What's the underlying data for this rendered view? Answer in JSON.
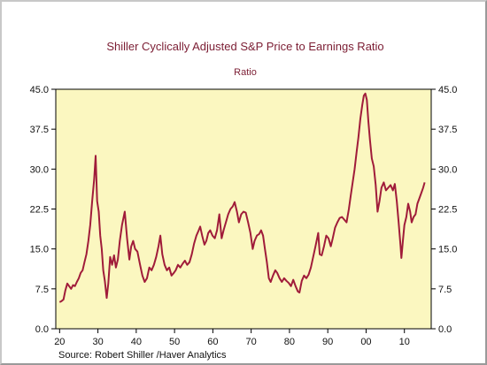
{
  "chart_data": {
    "type": "line",
    "title": "Shiller Cyclically Adjusted S&P Price to Earnings Ratio",
    "subtitle": "Ratio",
    "source": "Source:  Robert Shiller /Haver Analytics",
    "xlabel": "",
    "ylabel": "",
    "x_ticks": [
      "20",
      "30",
      "40",
      "50",
      "60",
      "70",
      "80",
      "90",
      "00",
      "10"
    ],
    "x_tick_years": [
      1920,
      1930,
      1940,
      1950,
      1960,
      1970,
      1980,
      1990,
      2000,
      2010
    ],
    "y_ticks": [
      "0.0",
      "7.5",
      "15.0",
      "22.5",
      "30.0",
      "37.5",
      "45.0"
    ],
    "ylim": [
      0,
      45
    ],
    "xlim": [
      1919,
      2017
    ],
    "line_color": "#a01c3a",
    "background_color": "#fbf7c0",
    "series": [
      {
        "values": [
          [
            1920.0,
            5.0
          ],
          [
            1920.5,
            5.2
          ],
          [
            1921.0,
            5.5
          ],
          [
            1921.5,
            7.2
          ],
          [
            1922.0,
            8.5
          ],
          [
            1922.5,
            8.0
          ],
          [
            1923.0,
            7.5
          ],
          [
            1923.5,
            8.2
          ],
          [
            1924.0,
            8.0
          ],
          [
            1924.5,
            8.8
          ],
          [
            1925.0,
            9.5
          ],
          [
            1925.5,
            10.5
          ],
          [
            1926.0,
            11.0
          ],
          [
            1926.5,
            12.5
          ],
          [
            1927.0,
            14.0
          ],
          [
            1927.5,
            16.5
          ],
          [
            1928.0,
            19.5
          ],
          [
            1928.5,
            24.0
          ],
          [
            1929.0,
            28.0
          ],
          [
            1929.4,
            32.5
          ],
          [
            1929.8,
            24.0
          ],
          [
            1930.2,
            22.0
          ],
          [
            1930.6,
            17.5
          ],
          [
            1931.0,
            15.0
          ],
          [
            1931.4,
            11.0
          ],
          [
            1931.8,
            9.0
          ],
          [
            1932.3,
            5.8
          ],
          [
            1932.7,
            8.5
          ],
          [
            1933.2,
            13.5
          ],
          [
            1933.7,
            12.0
          ],
          [
            1934.2,
            13.8
          ],
          [
            1934.7,
            11.5
          ],
          [
            1935.2,
            13.0
          ],
          [
            1935.7,
            16.5
          ],
          [
            1936.3,
            19.5
          ],
          [
            1937.0,
            22.0
          ],
          [
            1937.6,
            17.0
          ],
          [
            1938.2,
            13.0
          ],
          [
            1938.7,
            15.5
          ],
          [
            1939.2,
            16.5
          ],
          [
            1939.7,
            15.0
          ],
          [
            1940.3,
            14.5
          ],
          [
            1941.0,
            12.0
          ],
          [
            1941.6,
            10.0
          ],
          [
            1942.2,
            8.8
          ],
          [
            1942.8,
            9.5
          ],
          [
            1943.4,
            11.5
          ],
          [
            1944.0,
            11.0
          ],
          [
            1944.6,
            12.0
          ],
          [
            1945.2,
            13.5
          ],
          [
            1945.8,
            15.5
          ],
          [
            1946.3,
            17.5
          ],
          [
            1946.8,
            14.0
          ],
          [
            1947.4,
            12.0
          ],
          [
            1948.0,
            11.0
          ],
          [
            1948.6,
            11.5
          ],
          [
            1949.2,
            10.0
          ],
          [
            1949.8,
            10.5
          ],
          [
            1950.3,
            11.0
          ],
          [
            1950.9,
            12.0
          ],
          [
            1951.5,
            11.5
          ],
          [
            1952.1,
            12.2
          ],
          [
            1952.7,
            12.8
          ],
          [
            1953.3,
            12.0
          ],
          [
            1953.9,
            12.5
          ],
          [
            1954.5,
            14.0
          ],
          [
            1955.1,
            16.0
          ],
          [
            1955.7,
            17.5
          ],
          [
            1956.3,
            18.5
          ],
          [
            1956.7,
            19.2
          ],
          [
            1957.2,
            17.5
          ],
          [
            1957.8,
            15.8
          ],
          [
            1958.3,
            16.5
          ],
          [
            1958.8,
            18.0
          ],
          [
            1959.3,
            18.5
          ],
          [
            1959.9,
            17.5
          ],
          [
            1960.5,
            17.0
          ],
          [
            1961.1,
            18.5
          ],
          [
            1961.7,
            21.5
          ],
          [
            1962.3,
            17.0
          ],
          [
            1962.8,
            18.5
          ],
          [
            1963.4,
            20.0
          ],
          [
            1964.0,
            21.5
          ],
          [
            1964.6,
            22.5
          ],
          [
            1965.2,
            23.0
          ],
          [
            1965.7,
            23.8
          ],
          [
            1966.3,
            22.0
          ],
          [
            1966.8,
            20.0
          ],
          [
            1967.4,
            21.5
          ],
          [
            1968.0,
            22.0
          ],
          [
            1968.6,
            21.8
          ],
          [
            1969.2,
            20.0
          ],
          [
            1969.8,
            18.0
          ],
          [
            1970.4,
            15.0
          ],
          [
            1970.9,
            16.5
          ],
          [
            1971.5,
            17.5
          ],
          [
            1972.1,
            17.8
          ],
          [
            1972.6,
            18.5
          ],
          [
            1973.1,
            17.5
          ],
          [
            1973.6,
            15.0
          ],
          [
            1974.1,
            12.5
          ],
          [
            1974.6,
            9.5
          ],
          [
            1975.1,
            8.8
          ],
          [
            1975.7,
            10.0
          ],
          [
            1976.3,
            11.0
          ],
          [
            1976.8,
            10.5
          ],
          [
            1977.4,
            9.5
          ],
          [
            1978.0,
            8.8
          ],
          [
            1978.6,
            9.5
          ],
          [
            1979.2,
            9.0
          ],
          [
            1979.8,
            8.6
          ],
          [
            1980.4,
            8.0
          ],
          [
            1981.0,
            9.2
          ],
          [
            1981.6,
            8.0
          ],
          [
            1982.2,
            7.0
          ],
          [
            1982.6,
            6.8
          ],
          [
            1983.2,
            9.0
          ],
          [
            1983.8,
            10.0
          ],
          [
            1984.4,
            9.5
          ],
          [
            1985.0,
            10.2
          ],
          [
            1985.6,
            11.5
          ],
          [
            1986.2,
            13.5
          ],
          [
            1986.8,
            15.5
          ],
          [
            1987.5,
            18.0
          ],
          [
            1987.9,
            14.0
          ],
          [
            1988.4,
            13.8
          ],
          [
            1989.0,
            15.5
          ],
          [
            1989.6,
            17.5
          ],
          [
            1990.2,
            17.0
          ],
          [
            1990.8,
            15.5
          ],
          [
            1991.3,
            17.0
          ],
          [
            1991.9,
            19.0
          ],
          [
            1992.5,
            20.0
          ],
          [
            1993.1,
            20.8
          ],
          [
            1993.7,
            21.0
          ],
          [
            1994.3,
            20.5
          ],
          [
            1994.9,
            20.0
          ],
          [
            1995.5,
            22.5
          ],
          [
            1996.0,
            25.0
          ],
          [
            1996.5,
            27.5
          ],
          [
            1997.0,
            30.0
          ],
          [
            1997.5,
            33.0
          ],
          [
            1998.0,
            36.0
          ],
          [
            1998.5,
            39.5
          ],
          [
            1999.0,
            42.0
          ],
          [
            1999.4,
            43.8
          ],
          [
            1999.8,
            44.2
          ],
          [
            2000.2,
            43.0
          ],
          [
            2000.6,
            39.0
          ],
          [
            2001.0,
            35.5
          ],
          [
            2001.5,
            32.0
          ],
          [
            2002.0,
            30.5
          ],
          [
            2002.5,
            27.0
          ],
          [
            2003.0,
            22.0
          ],
          [
            2003.5,
            24.0
          ],
          [
            2004.0,
            26.5
          ],
          [
            2004.6,
            27.5
          ],
          [
            2005.2,
            26.0
          ],
          [
            2005.8,
            26.5
          ],
          [
            2006.4,
            27.0
          ],
          [
            2007.0,
            26.0
          ],
          [
            2007.5,
            27.2
          ],
          [
            2008.0,
            24.0
          ],
          [
            2008.5,
            20.0
          ],
          [
            2009.0,
            15.5
          ],
          [
            2009.2,
            13.3
          ],
          [
            2009.6,
            16.5
          ],
          [
            2010.0,
            19.5
          ],
          [
            2010.5,
            21.0
          ],
          [
            2011.0,
            23.5
          ],
          [
            2011.5,
            22.0
          ],
          [
            2011.9,
            20.0
          ],
          [
            2012.4,
            21.0
          ],
          [
            2012.9,
            21.5
          ],
          [
            2013.4,
            23.5
          ],
          [
            2013.9,
            24.5
          ],
          [
            2014.4,
            25.5
          ],
          [
            2014.9,
            26.5
          ],
          [
            2015.3,
            27.5
          ]
        ]
      }
    ]
  }
}
